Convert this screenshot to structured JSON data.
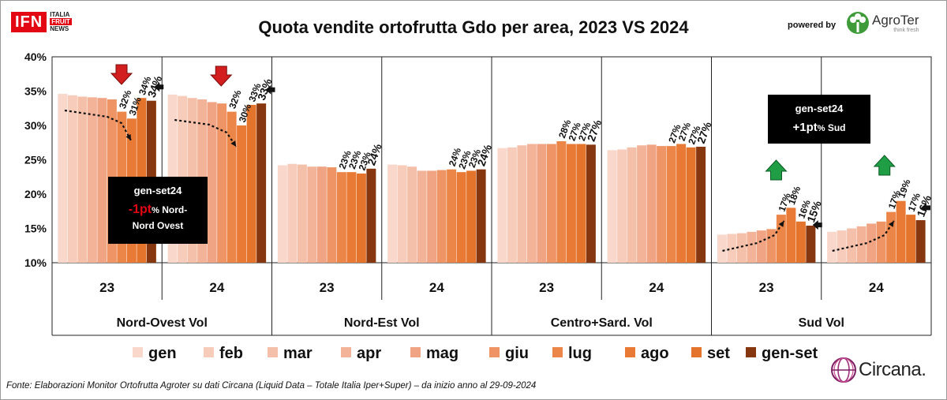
{
  "header": {
    "title": "Quota vendite ortofrutta Gdo per area, 2023 VS 2024",
    "powered_by": "powered by",
    "logo_ifn_main": "IFN",
    "logo_ifn_sub": [
      "ITALIA",
      "FRUIT",
      "NEWS"
    ],
    "logo_agroter": "AgroTer",
    "logo_agroter_tagline": "think fresh",
    "logo_circana": "Circana."
  },
  "footer": {
    "source": "Fonte: Elaborazioni Monitor Ortofrutta Agroter su dati Circana (Liquid Data – Totale Italia Iper+Super) –  da inizio anno al 29-09-2024"
  },
  "colors": {
    "months": [
      "#f9d8cb",
      "#f7ccbb",
      "#f5c0aa",
      "#f3b398",
      "#f0a484",
      "#ee9465",
      "#ec8548",
      "#e97a35",
      "#e4742c"
    ],
    "total": "#86370f",
    "up_arrow": "#1f9e45",
    "down_arrow": "#d21e1e",
    "box_bg": "#000000",
    "text_red": "#e30613"
  },
  "chart_data": {
    "type": "bar",
    "yaxis": {
      "min": 0.1,
      "max": 0.4,
      "ticks": [
        "10%",
        "15%",
        "20%",
        "25%",
        "30%",
        "35%",
        "40%"
      ]
    },
    "legend": [
      "gen",
      "feb",
      "mar",
      "apr",
      "mag",
      "giu",
      "lug",
      "ago",
      "set",
      "gen-set"
    ],
    "grid": false,
    "groups": [
      {
        "area": "Nord-Ovest  Vol",
        "year": "23",
        "values": [
          0.346,
          0.344,
          0.342,
          0.341,
          0.34,
          0.338,
          0.32,
          0.31,
          0.34,
          0.336
        ],
        "labels": [
          "32%",
          "31%",
          "34%",
          "34%"
        ]
      },
      {
        "area": "Nord-Ovest  Vol",
        "year": "24",
        "values": [
          0.345,
          0.343,
          0.34,
          0.338,
          0.334,
          0.332,
          0.32,
          0.3,
          0.33,
          0.332
        ],
        "labels": [
          "32%",
          "30%",
          "33%",
          "33%"
        ]
      },
      {
        "area": "Nord-Est Vol",
        "year": "23",
        "values": [
          0.242,
          0.244,
          0.243,
          0.24,
          0.24,
          0.239,
          0.232,
          0.232,
          0.23,
          0.237
        ],
        "labels": [
          "23%",
          "23%",
          "23%",
          "24%"
        ]
      },
      {
        "area": "Nord-Est Vol",
        "year": "24",
        "values": [
          0.243,
          0.242,
          0.24,
          0.234,
          0.234,
          0.235,
          0.236,
          0.232,
          0.234,
          0.236
        ],
        "labels": [
          "24%",
          "23%",
          "23%",
          "24%"
        ]
      },
      {
        "area": "Centro+Sard. Vol",
        "year": "23",
        "values": [
          0.267,
          0.268,
          0.271,
          0.273,
          0.273,
          0.273,
          0.277,
          0.273,
          0.273,
          0.272
        ],
        "labels": [
          "28%",
          "27%",
          "27%",
          "27%"
        ]
      },
      {
        "area": "Centro+Sard. Vol",
        "year": "24",
        "values": [
          0.264,
          0.265,
          0.268,
          0.271,
          0.272,
          0.27,
          0.27,
          0.273,
          0.268,
          0.269
        ],
        "labels": [
          "27%",
          "27%",
          "27%",
          "27%"
        ]
      },
      {
        "area": "Sud Vol",
        "year": "23",
        "values": [
          0.141,
          0.142,
          0.143,
          0.145,
          0.147,
          0.149,
          0.17,
          0.18,
          0.16,
          0.154
        ],
        "labels": [
          "17%",
          "18%",
          "16%",
          "15%"
        ]
      },
      {
        "area": "Sud Vol",
        "year": "24",
        "values": [
          0.145,
          0.147,
          0.15,
          0.153,
          0.157,
          0.16,
          0.174,
          0.19,
          0.17,
          0.162
        ],
        "labels": [
          "17%",
          "19%",
          "17%",
          "16%"
        ]
      }
    ],
    "categories_x": [
      "23",
      "24",
      "23",
      "24",
      "23",
      "24",
      "23",
      "24"
    ],
    "areas": [
      "Nord-Ovest  Vol",
      "Nord-Est Vol",
      "Centro+Sard. Vol",
      "Sud Vol"
    ],
    "annotations": [
      {
        "box": "gen-set24",
        "value": "-1pt",
        "unit": "%",
        "rest": " Nord-",
        "line3": "Nord Ovest",
        "area": "Nord-Ovest  Vol"
      },
      {
        "box": "gen-set24",
        "value": "+1pt",
        "unit": "%",
        "rest": " Sud",
        "area": "Sud Vol"
      }
    ]
  }
}
